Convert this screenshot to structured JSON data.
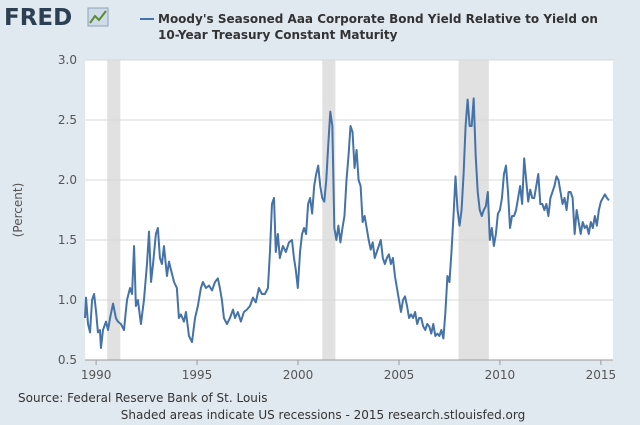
{
  "chart_data": {
    "type": "line",
    "logo": "FRED",
    "title": [
      "Moody's Seasoned Aaa Corporate Bond Yield Relative to Yield on",
      "10-Year Treasury Constant Maturity"
    ],
    "y_label": "(Percent)",
    "source": "Source: Federal Reserve Bank of St. Louis",
    "note": "Shaded areas indicate US recessions - 2015 research.stlouisfed.org",
    "xlim": [
      1989.45,
      2015.6
    ],
    "xticks": [
      1990,
      1995,
      2000,
      2005,
      2010,
      2015
    ],
    "ylim": [
      0.5,
      3.0
    ],
    "yticks": [
      0.5,
      {
        "value": 1.0,
        "label": "1.0"
      },
      1.5,
      {
        "value": 2.0,
        "label": "2.0"
      },
      2.5,
      {
        "value": 3.0,
        "label": "3.0"
      }
    ],
    "grid": true,
    "recessions": [
      [
        1990.55,
        1991.2
      ],
      [
        2001.2,
        2001.85
      ],
      [
        2007.95,
        2009.45
      ]
    ],
    "recession_color": "#e1e1e1",
    "series": [
      {
        "name": "Moody's Seasoned Aaa Corporate Bond Yield Relative to Yield on 10-Year Treasury Constant Maturity",
        "color": "#4572a7",
        "x": [
          1989.45,
          1989.5,
          1989.6,
          1989.7,
          1989.8,
          1989.9,
          1990.0,
          1990.09,
          1990.19,
          1990.24,
          1990.34,
          1990.49,
          1990.59,
          1990.69,
          1990.84,
          1990.98,
          1991.08,
          1991.23,
          1991.38,
          1991.53,
          1991.68,
          1991.78,
          1991.88,
          1991.97,
          1992.07,
          1992.22,
          1992.37,
          1992.52,
          1992.62,
          1992.72,
          1992.82,
          1992.96,
          1993.06,
          1993.16,
          1993.26,
          1993.36,
          1993.51,
          1993.61,
          1993.71,
          1993.86,
          1994.0,
          1994.1,
          1994.2,
          1994.35,
          1994.45,
          1994.6,
          1994.75,
          1994.9,
          1995.04,
          1995.19,
          1995.29,
          1995.44,
          1995.59,
          1995.74,
          1995.89,
          1996.03,
          1996.13,
          1996.23,
          1996.33,
          1996.48,
          1996.63,
          1996.78,
          1996.88,
          1997.02,
          1997.17,
          1997.32,
          1997.47,
          1997.62,
          1997.77,
          1997.91,
          1998.06,
          1998.21,
          1998.36,
          1998.51,
          1998.61,
          1998.71,
          1998.81,
          1998.9,
          1999.0,
          1999.1,
          1999.25,
          1999.4,
          1999.55,
          1999.7,
          1999.8,
          1999.89,
          1999.99,
          2000.1,
          2000.2,
          2000.3,
          2000.4,
          2000.5,
          2000.6,
          2000.7,
          2000.8,
          2000.9,
          2001.0,
          2001.1,
          2001.2,
          2001.3,
          2001.4,
          2001.5,
          2001.6,
          2001.7,
          2001.8,
          2001.9,
          2002.0,
          2002.1,
          2002.2,
          2002.3,
          2002.4,
          2002.5,
          2002.6,
          2002.7,
          2002.8,
          2002.9,
          2003.0,
          2003.1,
          2003.2,
          2003.3,
          2003.4,
          2003.5,
          2003.6,
          2003.7,
          2003.8,
          2003.9,
          2004.0,
          2004.1,
          2004.2,
          2004.3,
          2004.4,
          2004.5,
          2004.6,
          2004.7,
          2004.8,
          2004.9,
          2005.0,
          2005.1,
          2005.2,
          2005.3,
          2005.4,
          2005.5,
          2005.6,
          2005.7,
          2005.8,
          2005.9,
          2006.0,
          2006.1,
          2006.2,
          2006.3,
          2006.4,
          2006.5,
          2006.6,
          2006.7,
          2006.8,
          2006.9,
          2007.0,
          2007.1,
          2007.2,
          2007.3,
          2007.4,
          2007.5,
          2007.6,
          2007.7,
          2007.8,
          2007.9,
          2008.0,
          2008.1,
          2008.2,
          2008.3,
          2008.4,
          2008.5,
          2008.6,
          2008.7,
          2008.8,
          2008.9,
          2009.0,
          2009.1,
          2009.2,
          2009.3,
          2009.4,
          2009.5,
          2009.6,
          2009.7,
          2009.8,
          2009.9,
          2010.0,
          2010.1,
          2010.2,
          2010.3,
          2010.4,
          2010.5,
          2010.6,
          2010.7,
          2010.8,
          2010.9,
          2011.0,
          2011.1,
          2011.2,
          2011.3,
          2011.4,
          2011.5,
          2011.6,
          2011.7,
          2011.8,
          2011.9,
          2012.0,
          2012.1,
          2012.2,
          2012.3,
          2012.4,
          2012.5,
          2012.6,
          2012.7,
          2012.8,
          2012.9,
          2013.0,
          2013.1,
          2013.2,
          2013.3,
          2013.4,
          2013.5,
          2013.6,
          2013.7,
          2013.8,
          2013.9,
          2014.0,
          2014.1,
          2014.2,
          2014.3,
          2014.4,
          2014.5,
          2014.6,
          2014.7,
          2014.8,
          2014.9,
          2015.0,
          2015.1,
          2015.2,
          2015.3,
          2015.4
        ],
        "values": [
          0.85,
          1.02,
          0.8,
          0.73,
          1.0,
          1.05,
          0.9,
          0.73,
          0.75,
          0.6,
          0.75,
          0.82,
          0.75,
          0.85,
          0.97,
          0.85,
          0.82,
          0.8,
          0.75,
          1.0,
          1.1,
          1.05,
          1.45,
          0.95,
          1.0,
          0.8,
          1.0,
          1.3,
          1.57,
          1.15,
          1.3,
          1.55,
          1.6,
          1.35,
          1.3,
          1.45,
          1.2,
          1.32,
          1.25,
          1.15,
          1.1,
          0.85,
          0.88,
          0.82,
          0.9,
          0.7,
          0.65,
          0.85,
          0.95,
          1.1,
          1.15,
          1.1,
          1.12,
          1.08,
          1.15,
          1.18,
          1.1,
          1.0,
          0.85,
          0.8,
          0.85,
          0.92,
          0.85,
          0.9,
          0.82,
          0.9,
          0.92,
          0.95,
          1.02,
          0.98,
          1.1,
          1.05,
          1.05,
          1.1,
          1.4,
          1.8,
          1.85,
          1.4,
          1.55,
          1.35,
          1.45,
          1.4,
          1.48,
          1.5,
          1.35,
          1.25,
          1.1,
          1.4,
          1.55,
          1.6,
          1.55,
          1.8,
          1.85,
          1.72,
          1.95,
          2.05,
          2.12,
          1.95,
          1.85,
          1.82,
          2.0,
          2.3,
          2.57,
          2.45,
          1.6,
          1.5,
          1.62,
          1.48,
          1.6,
          1.7,
          2.0,
          2.2,
          2.45,
          2.4,
          2.1,
          2.25,
          2.0,
          1.95,
          1.65,
          1.7,
          1.6,
          1.5,
          1.42,
          1.48,
          1.35,
          1.4,
          1.45,
          1.5,
          1.35,
          1.3,
          1.35,
          1.38,
          1.3,
          1.35,
          1.2,
          1.1,
          1.0,
          0.9,
          1.0,
          1.03,
          0.95,
          0.85,
          0.88,
          0.85,
          0.9,
          0.8,
          0.85,
          0.85,
          0.78,
          0.75,
          0.8,
          0.78,
          0.72,
          0.8,
          0.7,
          0.72,
          0.7,
          0.75,
          0.68,
          0.9,
          1.2,
          1.15,
          1.4,
          1.7,
          2.03,
          1.75,
          1.62,
          1.75,
          2.05,
          2.45,
          2.67,
          2.45,
          2.45,
          2.68,
          2.2,
          1.9,
          1.75,
          1.7,
          1.75,
          1.78,
          1.9,
          1.5,
          1.6,
          1.45,
          1.55,
          1.72,
          1.75,
          1.85,
          2.05,
          2.12,
          1.9,
          1.6,
          1.7,
          1.7,
          1.75,
          1.85,
          1.95,
          1.8,
          2.18,
          2.0,
          1.82,
          1.92,
          1.85,
          1.85,
          1.95,
          2.05,
          1.8,
          1.8,
          1.75,
          1.8,
          1.7,
          1.85,
          1.9,
          1.95,
          2.03,
          2.0,
          1.9,
          1.8,
          1.85,
          1.75,
          1.9,
          1.9,
          1.85,
          1.55,
          1.75,
          1.65,
          1.55,
          1.65,
          1.6,
          1.62,
          1.55,
          1.65,
          1.6,
          1.7,
          1.62,
          1.75,
          1.82,
          1.85,
          1.88,
          1.85,
          1.83
        ]
      }
    ]
  }
}
